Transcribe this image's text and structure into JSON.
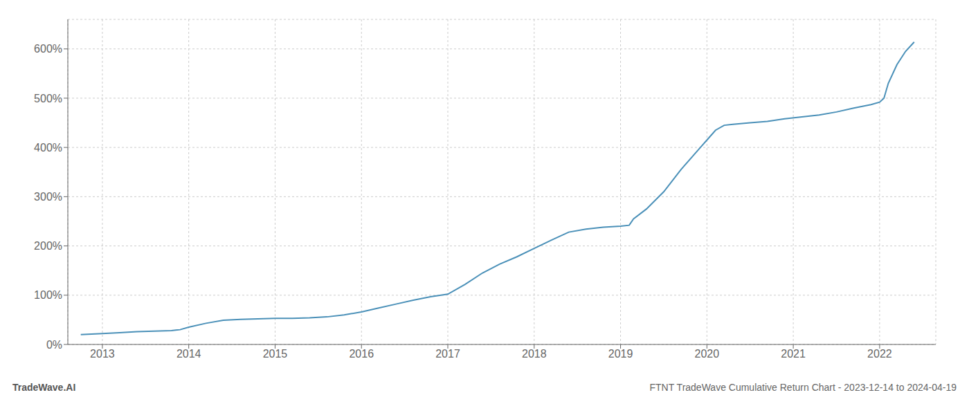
{
  "chart_data": {
    "type": "line",
    "title": "FTNT TradeWave Cumulative Return Chart - 2023-12-14 to 2024-04-19",
    "annotations": [
      "TradeWave.AI"
    ],
    "color": "#4a90b8",
    "grid": true,
    "x": [
      2012.75,
      2013.0,
      2013.2,
      2013.4,
      2013.6,
      2013.8,
      2013.9,
      2014.0,
      2014.2,
      2014.4,
      2014.6,
      2014.8,
      2015.0,
      2015.2,
      2015.4,
      2015.6,
      2015.8,
      2016.0,
      2016.2,
      2016.4,
      2016.6,
      2016.8,
      2017.0,
      2017.2,
      2017.4,
      2017.6,
      2017.8,
      2018.0,
      2018.2,
      2018.4,
      2018.6,
      2018.8,
      2019.0,
      2019.1,
      2019.15,
      2019.3,
      2019.5,
      2019.7,
      2019.9,
      2020.0,
      2020.1,
      2020.2,
      2020.3,
      2020.5,
      2020.7,
      2020.9,
      2021.1,
      2021.3,
      2021.5,
      2021.7,
      2021.9,
      2022.0,
      2022.05,
      2022.1,
      2022.2,
      2022.3,
      2022.4
    ],
    "values": [
      20,
      22,
      24,
      26,
      27,
      28,
      30,
      35,
      43,
      49,
      51,
      52,
      53,
      53,
      54,
      56,
      60,
      66,
      74,
      82,
      90,
      97,
      102,
      122,
      145,
      163,
      178,
      195,
      212,
      228,
      234,
      238,
      240,
      242,
      255,
      275,
      310,
      355,
      395,
      415,
      435,
      445,
      447,
      450,
      453,
      458,
      462,
      466,
      472,
      480,
      487,
      492,
      500,
      530,
      568,
      595,
      614
    ],
    "xlim": [
      2012.6,
      2022.65
    ],
    "xticks": [
      2013,
      2014,
      2015,
      2016,
      2017,
      2018,
      2019,
      2020,
      2021,
      2022
    ],
    "ylim": [
      0,
      660
    ],
    "yticks": [
      {
        "value": 0,
        "label": "0%"
      },
      {
        "value": 100,
        "label": "100%"
      },
      {
        "value": 200,
        "label": "200%"
      },
      {
        "value": 300,
        "label": "300%"
      },
      {
        "value": 400,
        "label": "400%"
      },
      {
        "value": 500,
        "label": "500%"
      },
      {
        "value": 600,
        "label": "600%"
      }
    ]
  }
}
